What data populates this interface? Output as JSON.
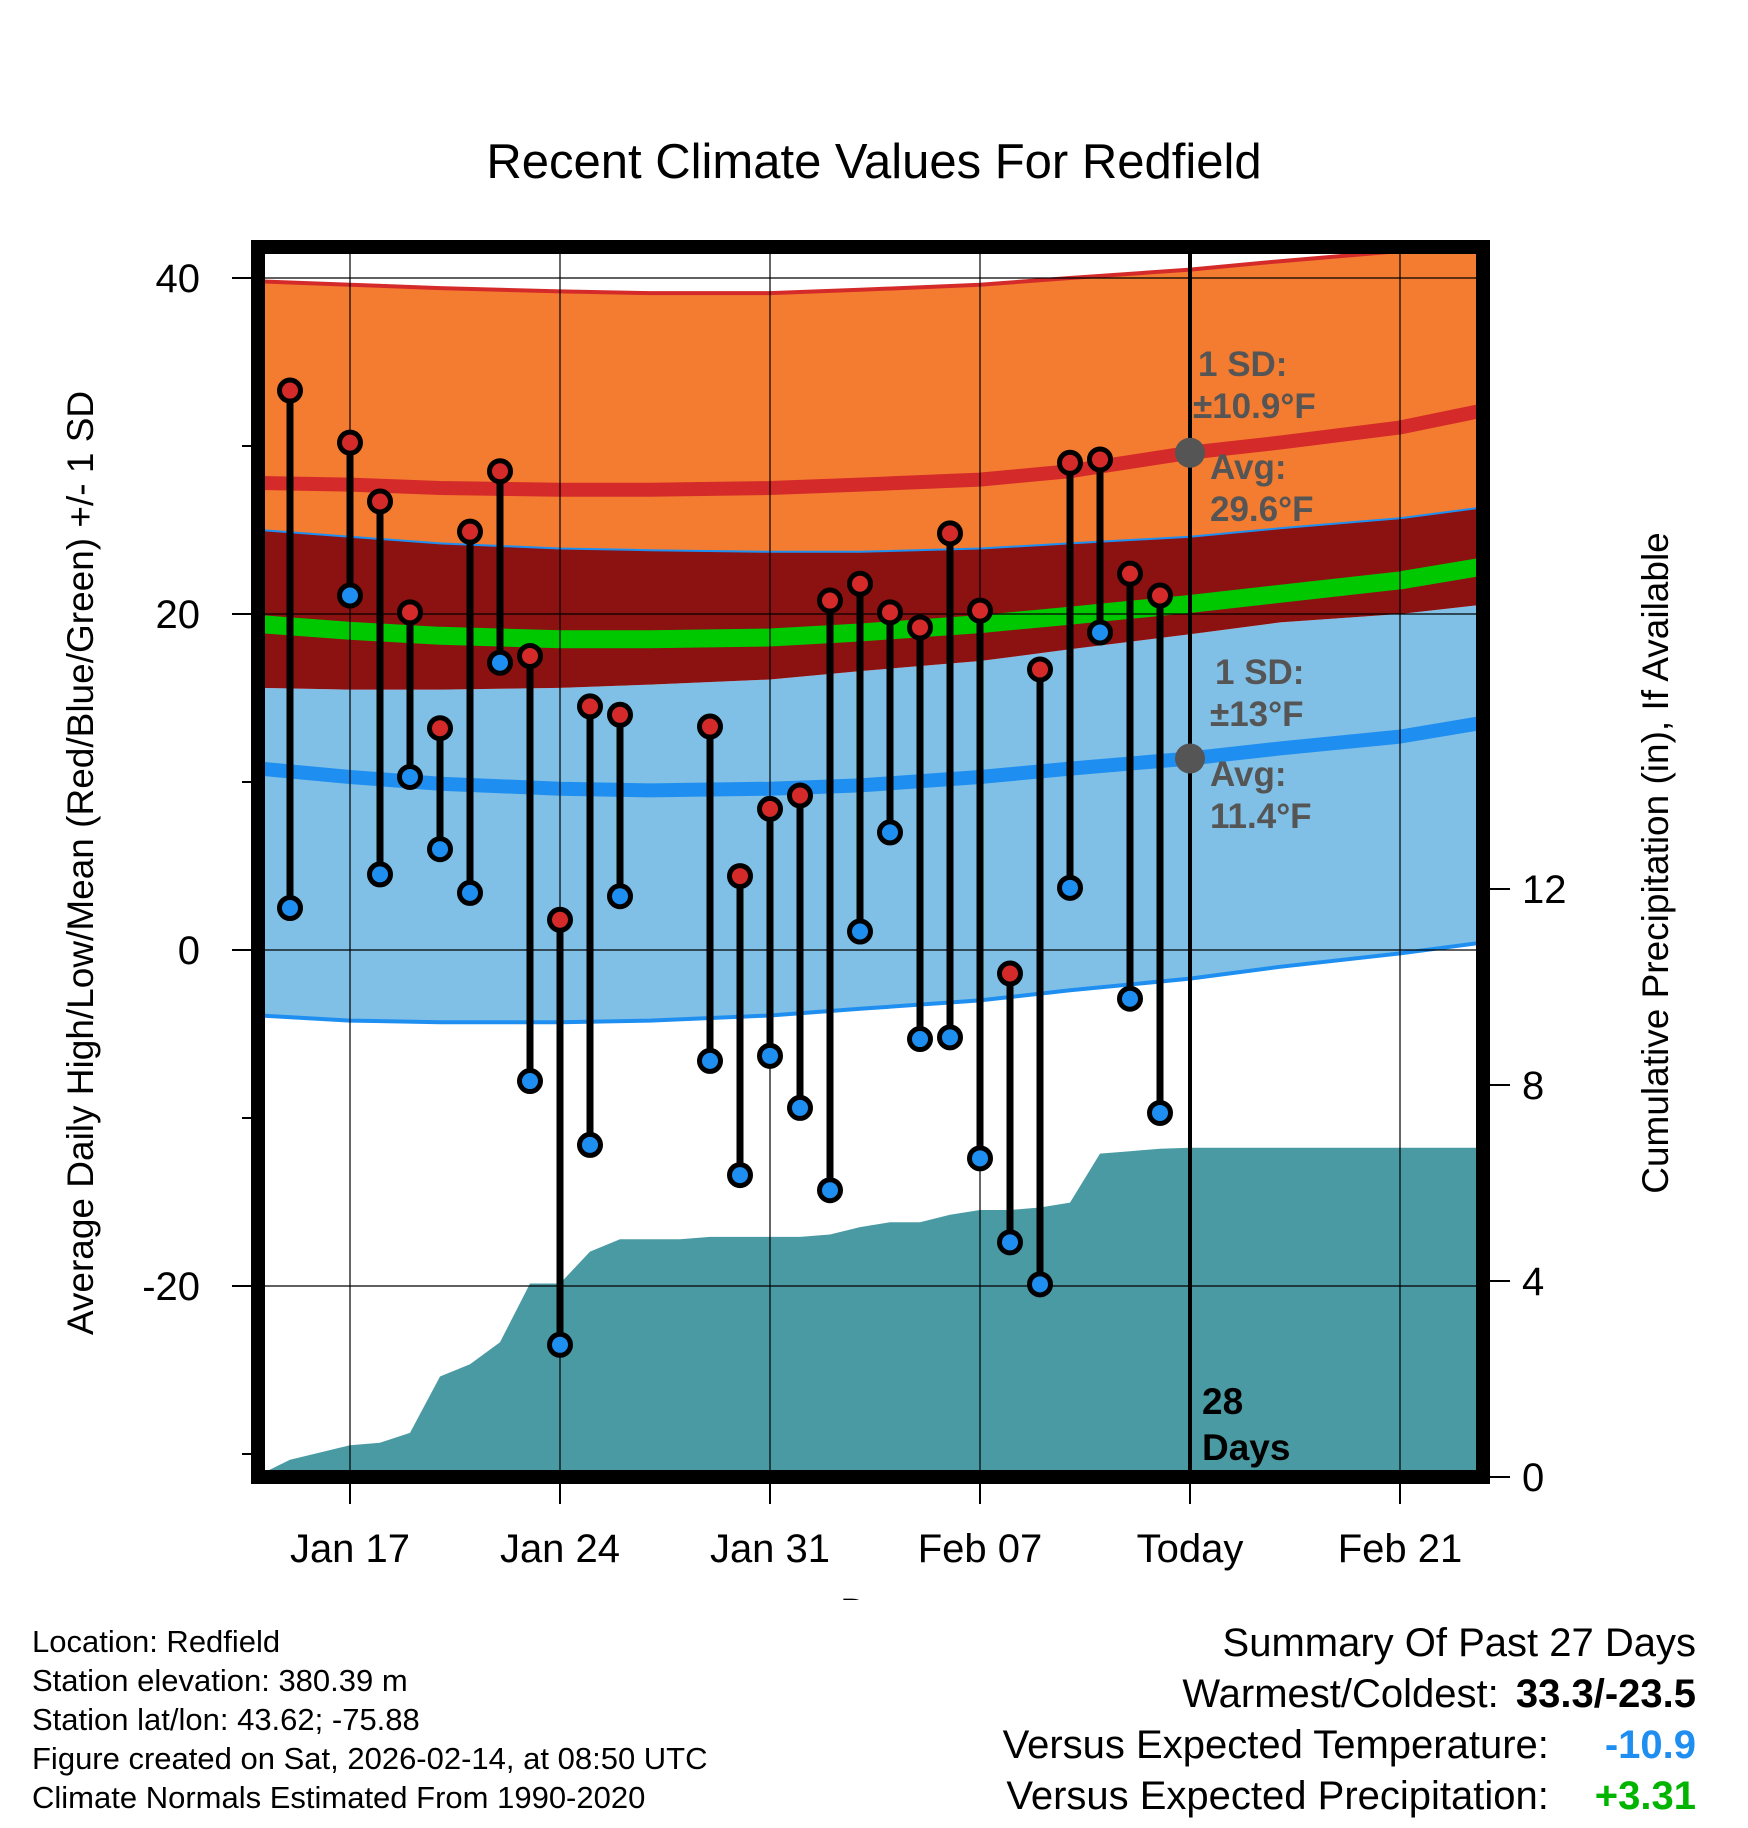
{
  "title": "Recent Climate Values For Redfield",
  "chart_data": {
    "type": "range-bar",
    "xlabel": "Day",
    "ylabel": "Average Daily High/Low/Mean (Red/Blue/Green) +/- 1 SD",
    "y2label": "Cumulative Precipitation (in), If Available",
    "ylim": [
      -31,
      43
    ],
    "y_ticks": [
      40,
      20,
      0,
      -20
    ],
    "y_minor_ticks": [
      30,
      10,
      -10,
      -30
    ],
    "y2lim": [
      0,
      24.4
    ],
    "y2_ticks": [
      12,
      8,
      4,
      0
    ],
    "xlim": [
      -3.3,
      38.3
    ],
    "x_ticks": [
      {
        "day": 0,
        "label": "Jan 17"
      },
      {
        "day": 7,
        "label": "Jan 24"
      },
      {
        "day": 14,
        "label": "Jan 31"
      },
      {
        "day": 21,
        "label": "Feb 07"
      },
      {
        "day": 28,
        "label": "Today"
      },
      {
        "day": 35,
        "label": "Feb 21"
      }
    ],
    "today_day": 28,
    "days_label": [
      "28",
      "Days"
    ],
    "normals": {
      "high_mean": {
        "day": [
          -3,
          0,
          3,
          7,
          10,
          14,
          17,
          21,
          24,
          28,
          31,
          35,
          38
        ],
        "values": [
          27.8,
          27.7,
          27.5,
          27.4,
          27.4,
          27.5,
          27.7,
          28.0,
          28.5,
          29.6,
          30.2,
          31.1,
          32.2
        ]
      },
      "high_upper": {
        "day": [
          -3,
          0,
          3,
          7,
          10,
          14,
          17,
          21,
          24,
          28,
          31,
          35,
          38
        ],
        "values": [
          39.8,
          39.6,
          39.4,
          39.2,
          39.1,
          39.1,
          39.3,
          39.6,
          40.0,
          40.5,
          41.0,
          41.6,
          42.4
        ]
      },
      "high_lower": {
        "day": [
          -3,
          0,
          3,
          7,
          10,
          14,
          17,
          21,
          24,
          28,
          31,
          35,
          38
        ],
        "values": [
          25.0,
          24.6,
          24.2,
          23.9,
          23.8,
          23.7,
          23.7,
          23.9,
          24.2,
          24.6,
          25.1,
          25.7,
          26.4
        ]
      },
      "low_mean": {
        "day": [
          -3,
          0,
          3,
          7,
          10,
          14,
          17,
          21,
          24,
          28,
          31,
          35,
          38
        ],
        "values": [
          10.8,
          10.3,
          9.9,
          9.6,
          9.5,
          9.6,
          9.8,
          10.3,
          10.8,
          11.4,
          12.0,
          12.7,
          13.6
        ]
      },
      "low_upper": {
        "day": [
          -3,
          0,
          3,
          7,
          10,
          14,
          17,
          21,
          24,
          28,
          31,
          35,
          38
        ],
        "values": [
          15.6,
          15.5,
          15.5,
          15.6,
          15.8,
          16.1,
          16.6,
          17.2,
          17.9,
          18.8,
          19.5,
          20.0,
          20.6
        ]
      },
      "low_lower": {
        "day": [
          -3,
          0,
          3,
          7,
          10,
          14,
          17,
          21,
          24,
          28,
          31,
          35,
          38
        ],
        "values": [
          -3.9,
          -4.2,
          -4.3,
          -4.3,
          -4.2,
          -3.9,
          -3.5,
          -3.0,
          -2.4,
          -1.7,
          -1.0,
          -0.2,
          0.5
        ]
      },
      "mean": {
        "day": [
          -3,
          0,
          3,
          7,
          10,
          14,
          17,
          21,
          24,
          28,
          31,
          35,
          38
        ],
        "values": [
          19.4,
          19.0,
          18.7,
          18.5,
          18.5,
          18.6,
          18.9,
          19.4,
          19.9,
          20.6,
          21.2,
          22.0,
          22.9
        ]
      }
    },
    "annotations": {
      "high_sd": [
        "1 SD:",
        "±10.9°F"
      ],
      "high_avg": [
        "Avg:",
        "29.6°F"
      ],
      "low_sd": [
        "1 SD:",
        "±13°F"
      ],
      "low_avg": [
        "Avg:",
        "11.4°F"
      ]
    },
    "daily": {
      "day": [
        -2,
        0,
        1,
        2,
        3,
        4,
        5,
        6,
        7,
        8,
        9,
        12,
        13,
        14,
        15,
        16,
        17,
        18,
        19,
        20,
        21,
        22,
        23,
        24,
        25,
        26,
        27
      ],
      "high": [
        33.3,
        30.2,
        26.7,
        20.1,
        13.2,
        24.9,
        28.5,
        17.5,
        1.8,
        14.5,
        14.0,
        13.3,
        4.4,
        8.4,
        9.2,
        20.8,
        21.8,
        20.1,
        19.2,
        24.8,
        20.2,
        -1.4,
        16.7,
        29.0,
        29.2,
        22.4,
        21.1
      ],
      "low": [
        2.5,
        21.1,
        4.5,
        10.3,
        6.0,
        3.4,
        17.1,
        -7.8,
        -23.5,
        -11.6,
        3.2,
        -6.6,
        -13.4,
        -6.3,
        -9.4,
        -14.3,
        1.1,
        7.0,
        -5.3,
        -5.2,
        -12.4,
        -17.4,
        -19.9,
        3.7,
        18.9,
        -2.9,
        -9.7
      ]
    },
    "precip": {
      "day": [
        -3.0,
        -2.0,
        -1.0,
        0.0,
        1.0,
        2.0,
        3.0,
        4.0,
        5.0,
        6.0,
        7.0,
        8.0,
        9.0,
        10.0,
        11.0,
        12.0,
        13.0,
        14.0,
        15.0,
        16.0,
        17.0,
        18.0,
        19.0,
        20.0,
        21.0,
        22.0,
        23.0,
        24.0,
        25.0,
        26.0,
        27.0,
        28.0,
        38.0
      ],
      "values": [
        0.05,
        0.35,
        0.5,
        0.65,
        0.7,
        0.9,
        2.05,
        2.3,
        2.75,
        3.95,
        3.95,
        4.6,
        4.85,
        4.85,
        4.85,
        4.9,
        4.9,
        4.9,
        4.9,
        4.95,
        5.1,
        5.2,
        5.2,
        5.35,
        5.45,
        5.45,
        5.5,
        5.6,
        6.6,
        6.65,
        6.7,
        6.72,
        6.72
      ]
    }
  },
  "footer_left": [
    "Location: Redfield",
    "Station elevation: 380.39 m",
    "Station lat/lon: 43.62; -75.88",
    "Figure created on Sat, 2026-02-14, at 08:50 UTC",
    "Climate Normals Estimated From 1990-2020"
  ],
  "summary": {
    "heading": "Summary Of Past 27 Days",
    "warmest_label": "Warmest/Coldest:",
    "warmest_value": "33.3/-23.5",
    "temp_label": "Versus Expected Temperature:",
    "temp_value": "-10.9",
    "precip_label": "Versus Expected Precipitation:",
    "precip_value": "+3.31"
  },
  "colors": {
    "high_band": "#f47c30",
    "high_line": "#d42a2a",
    "overlap": "#8c1111",
    "mean_line": "#00c800",
    "low_band": "#80bfe6",
    "low_line": "#1e8ff0",
    "precip_fill": "#4a9aa4",
    "high_marker": "#d42a2a",
    "low_marker": "#1e8ff0",
    "annotation_text": "#555555",
    "temp_value": "#1e8ff0",
    "precip_value": "#00b400"
  }
}
